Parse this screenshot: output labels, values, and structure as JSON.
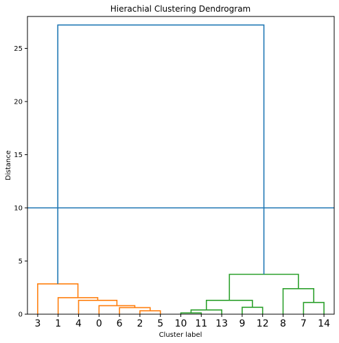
{
  "chart_data": {
    "type": "dendrogram",
    "title": "Hierachial Clustering Dendrogram",
    "xlabel": "Cluster label",
    "ylabel": "Distance",
    "ylim": [
      0,
      28
    ],
    "yticks": [
      0,
      5,
      10,
      15,
      20,
      25
    ],
    "leaf_order": [
      "3",
      "1",
      "4",
      "0",
      "6",
      "2",
      "5",
      "10",
      "11",
      "13",
      "9",
      "12",
      "8",
      "7",
      "14"
    ],
    "threshold_line": 10,
    "merges": [
      {
        "i": 7.5,
        "j": 8.5,
        "h": 0.12,
        "cluster": "green"
      },
      {
        "i": 13.5,
        "j": 14.5,
        "h": 1.1,
        "cluster": "green"
      },
      {
        "i": 5.5,
        "j": 6.5,
        "h": 0.32,
        "cluster": "orange"
      },
      {
        "i": 4.5,
        "j": 6.0,
        "h": 0.62,
        "cluster": "orange"
      },
      {
        "i": 8.0,
        "j": 9.5,
        "h": 0.4,
        "cluster": "green"
      },
      {
        "i": 3.5,
        "j": 5.25,
        "h": 0.8,
        "cluster": "orange"
      },
      {
        "i": 10.5,
        "j": 11.5,
        "h": 0.65,
        "cluster": "green"
      },
      {
        "i": 2.5,
        "j": 4.375,
        "h": 1.3,
        "cluster": "orange"
      },
      {
        "i": 8.75,
        "j": 11.0,
        "h": 1.3,
        "cluster": "green"
      },
      {
        "i": 1.5,
        "j": 3.4375,
        "h": 1.55,
        "cluster": "orange"
      },
      {
        "i": 12.5,
        "j": 14.0,
        "h": 2.4,
        "cluster": "green"
      },
      {
        "i": 0.5,
        "j": 2.46875,
        "h": 2.85,
        "cluster": "orange"
      },
      {
        "i": 9.875,
        "j": 13.25,
        "h": 3.75,
        "cluster": "green"
      },
      {
        "i": 1.484375,
        "j": 11.5625,
        "h": 27.2,
        "cluster": "root"
      }
    ],
    "colors": {
      "orange": "#ff7f0e",
      "green": "#2ca02c",
      "root": "#1f77b4",
      "threshold": "#1f77b4"
    },
    "grid": false
  }
}
